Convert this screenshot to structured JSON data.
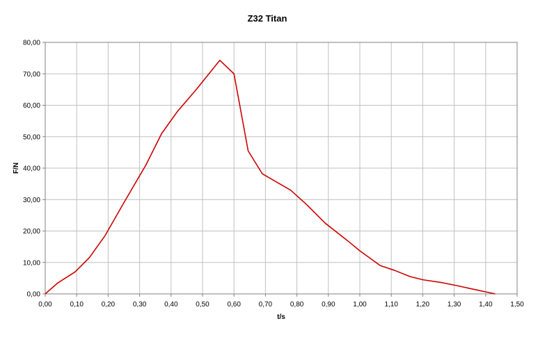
{
  "chart_data": {
    "type": "line",
    "title": "Z32 Titan",
    "xlabel": "t/s",
    "ylabel": "F/N",
    "xlim": [
      0,
      1.5
    ],
    "ylim": [
      0,
      80
    ],
    "x_ticks": [
      "0,00",
      "0,10",
      "0,20",
      "0,30",
      "0,40",
      "0,50",
      "0,60",
      "0,70",
      "0,80",
      "0,90",
      "1,00",
      "1,10",
      "1,20",
      "1,30",
      "1,40",
      "1,50"
    ],
    "y_ticks": [
      "0,00",
      "10,00",
      "20,00",
      "30,00",
      "40,00",
      "50,00",
      "60,00",
      "70,00",
      "80,00"
    ],
    "grid": true,
    "legend": "none",
    "colors": {
      "line": "#cc0000",
      "grid": "#c0c0c0",
      "axis": "#808080"
    },
    "series": [
      {
        "x": [
          0.0,
          0.04,
          0.095,
          0.14,
          0.19,
          0.25,
          0.32,
          0.37,
          0.42,
          0.48,
          0.555,
          0.6,
          0.645,
          0.69,
          0.78,
          0.83,
          0.89,
          0.96,
          1.0,
          1.065,
          1.11,
          1.16,
          1.2,
          1.26,
          1.31,
          1.36,
          1.43
        ],
        "y": [
          0.0,
          3.5,
          7.0,
          11.5,
          18.5,
          29.0,
          41.0,
          51.0,
          58.0,
          65.0,
          74.3,
          70.0,
          45.5,
          38.2,
          33.0,
          28.5,
          22.5,
          17.0,
          13.7,
          9.0,
          7.5,
          5.5,
          4.5,
          3.6,
          2.6,
          1.5,
          0.0
        ]
      }
    ]
  }
}
